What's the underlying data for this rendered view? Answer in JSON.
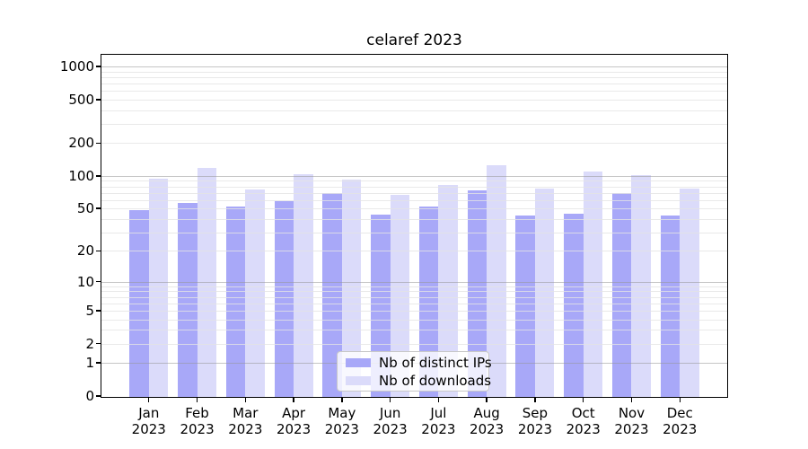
{
  "chart_data": {
    "type": "bar",
    "title": "celaref 2023",
    "categories": [
      "Jan",
      "Feb",
      "Mar",
      "Apr",
      "May",
      "Jun",
      "Jul",
      "Aug",
      "Sep",
      "Oct",
      "Nov",
      "Dec"
    ],
    "x_year_line": "2023",
    "series": [
      {
        "name": "Nb of distinct IPs",
        "color": "#a8a8f8",
        "values": [
          48,
          56,
          52,
          59,
          69,
          44,
          52,
          74,
          43,
          45,
          70,
          43
        ]
      },
      {
        "name": "Nb of downloads",
        "color": "#dbdbfa",
        "values": [
          95,
          118,
          75,
          103,
          93,
          67,
          83,
          126,
          77,
          110,
          102,
          77
        ]
      }
    ],
    "xlabel": "",
    "ylabel": "",
    "y_scale": "log10(1+x)",
    "y_ticks": [
      0,
      1,
      2,
      5,
      10,
      20,
      50,
      100,
      200,
      500,
      1000
    ],
    "y_minor_gridlines": [
      2,
      3,
      4,
      5,
      6,
      7,
      8,
      9,
      20,
      30,
      40,
      50,
      60,
      70,
      80,
      90,
      200,
      300,
      400,
      500,
      600,
      700,
      800,
      900
    ],
    "y_major_gridlines": [
      1,
      10,
      100,
      1000
    ],
    "ylim": [
      0,
      1300
    ],
    "grid": "horizontal major+minor",
    "legend_position": "inside-bottom-center",
    "background_color": "#ffffff",
    "spine_color": "#000000",
    "major_grid_color": "#cbcbcb",
    "minor_grid_color": "#ececec"
  }
}
